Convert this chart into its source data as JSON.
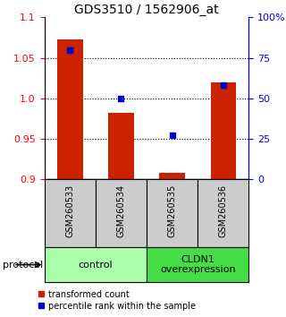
{
  "title": "GDS3510 / 1562906_at",
  "samples": [
    "GSM260533",
    "GSM260534",
    "GSM260535",
    "GSM260536"
  ],
  "red_values": [
    1.073,
    0.982,
    0.908,
    1.02
  ],
  "blue_values": [
    80,
    50,
    27,
    58
  ],
  "ylim_left": [
    0.9,
    1.1
  ],
  "ylim_right": [
    0,
    100
  ],
  "yticks_left": [
    0.9,
    0.95,
    1.0,
    1.05,
    1.1
  ],
  "yticks_right": [
    0,
    25,
    50,
    75,
    100
  ],
  "ytick_labels_right": [
    "0",
    "25",
    "50",
    "75",
    "100%"
  ],
  "dotted_lines": [
    0.95,
    1.0,
    1.05
  ],
  "groups": [
    {
      "label": "control",
      "indices": [
        0,
        1
      ],
      "color": "#aaffaa"
    },
    {
      "label": "CLDN1\noverexpression",
      "indices": [
        2,
        3
      ],
      "color": "#44dd44"
    }
  ],
  "bar_color": "#cc2200",
  "dot_color": "#0000cc",
  "bar_width": 0.5,
  "protocol_label": "protocol",
  "legend_red": "transformed count",
  "legend_blue": "percentile rank within the sample",
  "background_color": "#ffffff",
  "sample_box_color": "#cccccc",
  "title_fontsize": 10,
  "tick_fontsize": 8,
  "sample_fontsize": 7,
  "group_fontsize": 8,
  "legend_fontsize": 7
}
